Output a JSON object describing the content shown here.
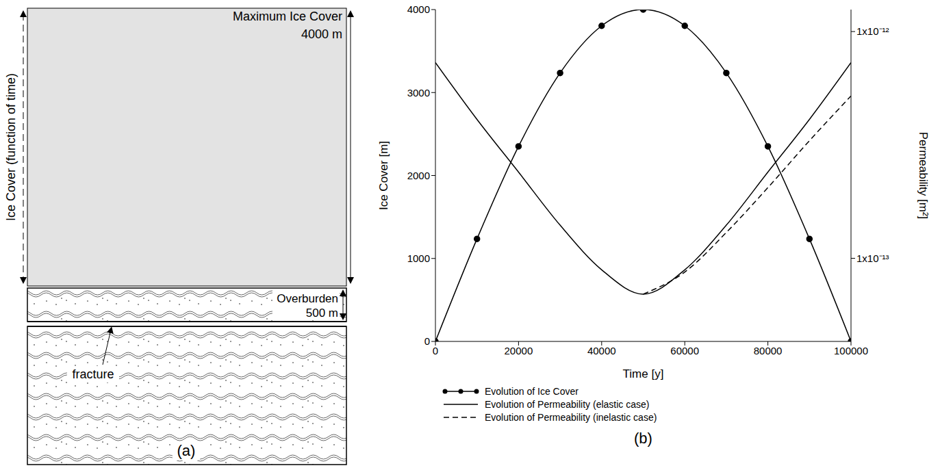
{
  "panel_a": {
    "label": "(a)",
    "ice_cover": {
      "label": "Ice Cover (function of time)",
      "maximum": "Maximum Ice Cover",
      "maximum_value": "4000 m"
    },
    "overburden": {
      "label": "Overburden",
      "thickness": "500 m"
    },
    "fracture": "fracture"
  },
  "chart_data": {
    "type": "line",
    "title": "(b)",
    "x_label": "Time [y]",
    "y_label": "Ice Cover [m]",
    "y2_label": "Permeability [m²]",
    "x": [
      0,
      10000,
      20000,
      30000,
      40000,
      50000,
      60000,
      70000,
      80000,
      90000,
      100000
    ],
    "xlim": [
      0,
      100000
    ],
    "xticks": [
      0,
      20000,
      40000,
      60000,
      80000,
      100000
    ],
    "ylim": [
      0,
      4000
    ],
    "yticks": [
      0,
      1000,
      2000,
      3000,
      4000
    ],
    "y2lim": [
      4.3e-14,
      1.25e-12
    ],
    "y2ticks": [
      {
        "value": 1e-13,
        "label": "1x10⁻¹³"
      },
      {
        "value": 1e-12,
        "label": "1x10⁻¹²"
      }
    ],
    "log": "y2",
    "grid": false,
    "legend": "bottom",
    "series": [
      {
        "name": "Evolution of Ice Cover",
        "color": "#000000",
        "marker": "circle",
        "line_style": "solid",
        "values": [
          0,
          1236,
          2351,
          3236,
          3804,
          4000,
          3804,
          3236,
          2351,
          1236,
          0
        ]
      },
      {
        "name": "Evolution of Permeability (elastic case)",
        "axis": "y2",
        "color": "#000000",
        "marker": "none",
        "line_style": "solid",
        "values": [
          7.3e-13,
          4.1e-13,
          2.4e-13,
          1.4e-13,
          8.9e-14,
          6.95e-14,
          8.9e-14,
          1.4e-13,
          2.4e-13,
          4.1e-13,
          7.3e-13
        ]
      },
      {
        "name": "Evolution of Permeability (inelastic case)",
        "axis": "y2",
        "color": "#000000",
        "marker": "none",
        "line_style": "dashed",
        "values": [
          null,
          null,
          null,
          null,
          null,
          6.95e-14,
          8.7e-14,
          1.3e-13,
          2.05e-13,
          3.3e-13,
          5.2e-13
        ]
      }
    ]
  }
}
